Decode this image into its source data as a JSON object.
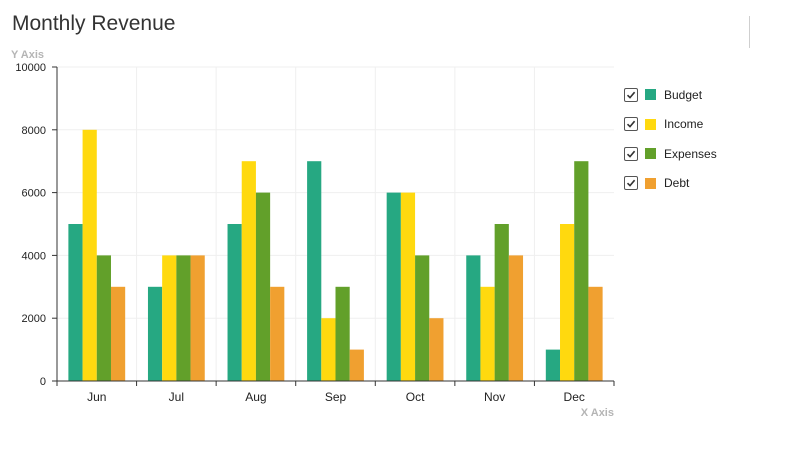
{
  "chart_data": {
    "type": "bar",
    "title": "Monthly Revenue",
    "ylabel": "Y Axis",
    "xlabel": "X Axis",
    "categories": [
      "Jun",
      "Jul",
      "Aug",
      "Sep",
      "Oct",
      "Nov",
      "Dec"
    ],
    "series": [
      {
        "name": "Budget",
        "color": "#26a882",
        "values": [
          5000,
          3000,
          5000,
          7000,
          6000,
          4000,
          1000
        ]
      },
      {
        "name": "Income",
        "color": "#ffd90f",
        "values": [
          8000,
          4000,
          7000,
          2000,
          6000,
          3000,
          5000
        ]
      },
      {
        "name": "Expenses",
        "color": "#62a02a",
        "values": [
          4000,
          4000,
          6000,
          3000,
          4000,
          5000,
          7000
        ]
      },
      {
        "name": "Debt",
        "color": "#f0a030",
        "values": [
          3000,
          4000,
          3000,
          1000,
          2000,
          4000,
          3000
        ]
      }
    ],
    "ylim": [
      0,
      10000
    ],
    "yticks": [
      0,
      2000,
      4000,
      6000,
      8000,
      10000
    ],
    "grid": true,
    "legend_position": "right",
    "legend_checked": true
  }
}
